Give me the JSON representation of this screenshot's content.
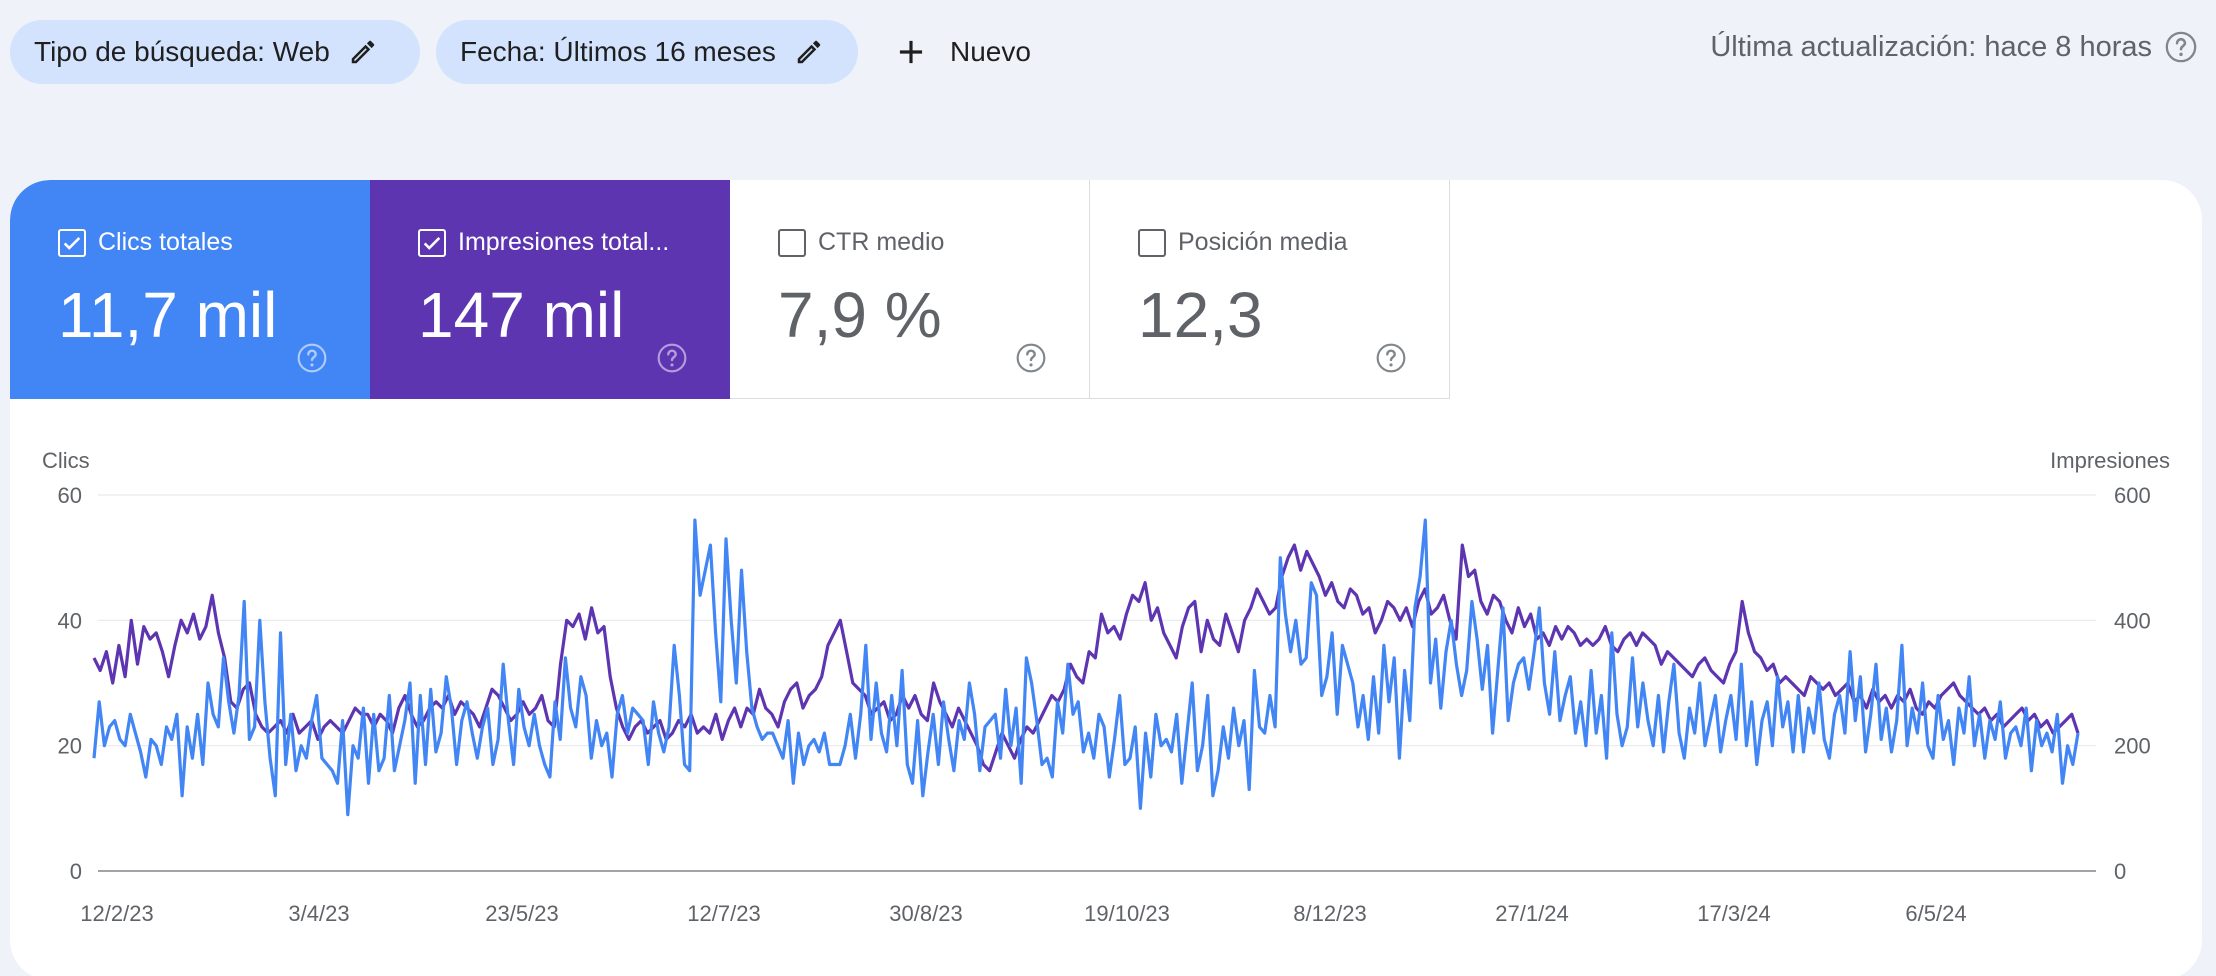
{
  "filters": {
    "search_type_label": "Tipo de búsqueda: Web",
    "date_label": "Fecha: Últimos 16 meses",
    "new_label": "Nuevo"
  },
  "last_updated": "Última actualización: hace 8 horas",
  "metrics": {
    "clicks": {
      "label": "Clics totales",
      "value": "11,7 mil",
      "checked": true,
      "color": "#4285f4"
    },
    "impressions": {
      "label": "Impresiones total...",
      "value": "147 mil",
      "checked": true,
      "color": "#5e35b1"
    },
    "ctr": {
      "label": "CTR medio",
      "value": "7,9 %",
      "checked": false
    },
    "position": {
      "label": "Posición media",
      "value": "12,3",
      "checked": false
    }
  },
  "chart_data": {
    "type": "line",
    "ylabel_left": "Clics",
    "ylabel_right": "Impresiones",
    "ylim_left": [
      0,
      60
    ],
    "ylim_right": [
      0,
      600
    ],
    "yticks_left": [
      "0",
      "20",
      "40",
      "60"
    ],
    "yticks_right": [
      "0",
      "200",
      "400",
      "600"
    ],
    "xticks": [
      "12/2/23",
      "3/4/23",
      "23/5/23",
      "12/7/23",
      "30/8/23",
      "19/10/23",
      "8/12/23",
      "27/1/24",
      "17/3/24",
      "6/5/24"
    ],
    "x_start": "12/2/23",
    "x_end": "26/6/24",
    "grid": true,
    "series": [
      {
        "name": "Impresiones",
        "axis": "right",
        "color": "#5e35b1",
        "values": [
          340,
          320,
          350,
          300,
          360,
          310,
          400,
          330,
          390,
          370,
          380,
          350,
          310,
          360,
          400,
          380,
          410,
          370,
          390,
          440,
          380,
          340,
          270,
          260,
          290,
          300,
          250,
          230,
          220,
          230,
          240,
          220,
          250,
          220,
          230,
          240,
          210,
          230,
          240,
          230,
          220,
          240,
          260,
          250,
          250,
          230,
          250,
          240,
          220,
          260,
          280,
          250,
          230,
          240,
          260,
          270,
          260,
          280,
          250,
          270,
          260,
          250,
          230,
          260,
          290,
          280,
          260,
          240,
          250,
          270,
          250,
          260,
          280,
          240,
          230,
          330,
          400,
          390,
          410,
          370,
          420,
          380,
          390,
          310,
          260,
          230,
          210,
          230,
          240,
          220,
          230,
          240,
          210,
          220,
          240,
          230,
          250,
          220,
          230,
          220,
          250,
          210,
          240,
          260,
          230,
          260,
          250,
          290,
          260,
          250,
          230,
          270,
          290,
          300,
          260,
          280,
          290,
          310,
          360,
          380,
          400,
          350,
          300,
          290,
          280,
          250,
          260,
          270,
          240,
          250,
          280,
          260,
          280,
          250,
          240,
          300,
          270,
          250,
          230,
          260,
          240,
          220,
          200,
          170,
          160,
          190,
          220,
          200,
          180,
          210,
          230,
          220,
          240,
          260,
          280,
          270,
          290,
          330,
          310,
          300,
          350,
          340,
          410,
          380,
          390,
          370,
          410,
          440,
          430,
          460,
          400,
          420,
          380,
          360,
          340,
          390,
          420,
          430,
          350,
          400,
          370,
          360,
          410,
          380,
          350,
          400,
          420,
          450,
          430,
          410,
          420,
          470,
          500,
          520,
          480,
          510,
          490,
          470,
          440,
          460,
          430,
          420,
          450,
          440,
          410,
          420,
          380,
          400,
          430,
          420,
          400,
          420,
          390,
          430,
          450,
          410,
          420,
          440,
          400,
          370,
          520,
          470,
          480,
          430,
          410,
          440,
          430,
          400,
          380,
          420,
          390,
          410,
          370,
          380,
          360,
          390,
          370,
          390,
          380,
          360,
          370,
          360,
          370,
          390,
          360,
          350,
          370,
          380,
          360,
          380,
          370,
          360,
          330,
          350,
          340,
          330,
          320,
          310,
          330,
          340,
          320,
          310,
          300,
          330,
          350,
          430,
          380,
          350,
          340,
          320,
          330,
          300,
          310,
          300,
          290,
          280,
          310,
          300,
          290,
          300,
          280,
          290,
          300,
          270,
          280,
          260,
          290,
          270,
          280,
          260,
          280,
          270,
          290,
          260,
          250,
          270,
          260,
          280,
          290,
          300,
          280,
          270,
          260,
          250,
          260,
          240,
          250,
          230,
          240,
          250,
          260,
          240,
          250,
          230,
          240,
          220,
          230,
          240,
          250,
          220
        ]
      },
      {
        "name": "Clics",
        "axis": "left",
        "color": "#4285f4",
        "values": [
          18,
          27,
          20,
          23,
          24,
          21,
          20,
          25,
          22,
          19,
          15,
          21,
          20,
          17,
          23,
          21,
          25,
          12,
          23,
          18,
          25,
          17,
          30,
          25,
          23,
          34,
          27,
          22,
          28,
          43,
          21,
          23,
          40,
          27,
          18,
          12,
          38,
          17,
          25,
          16,
          20,
          18,
          24,
          28,
          18,
          17,
          16,
          14,
          24,
          9,
          20,
          18,
          26,
          14,
          25,
          16,
          18,
          28,
          16,
          20,
          24,
          30,
          14,
          28,
          17,
          29,
          19,
          22,
          31,
          26,
          17,
          24,
          27,
          22,
          18,
          23,
          26,
          17,
          21,
          33,
          24,
          17,
          29,
          23,
          20,
          25,
          20,
          17,
          15,
          27,
          21,
          34,
          26,
          23,
          31,
          28,
          18,
          24,
          20,
          22,
          15,
          25,
          28,
          22,
          26,
          25,
          24,
          17,
          27,
          22,
          19,
          23,
          36,
          28,
          17,
          16,
          56,
          44,
          48,
          52,
          38,
          27,
          53,
          40,
          30,
          48,
          35,
          26,
          23,
          21,
          22,
          22,
          20,
          18,
          24,
          14,
          22,
          17,
          20,
          21,
          19,
          22,
          17,
          17,
          17,
          20,
          25,
          18,
          25,
          36,
          21,
          30,
          22,
          19,
          28,
          20,
          32,
          17,
          14,
          24,
          12,
          19,
          25,
          17,
          27,
          21,
          16,
          24,
          21,
          30,
          25,
          16,
          23,
          24,
          25,
          18,
          29,
          20,
          26,
          14,
          34,
          30,
          24,
          17,
          18,
          15,
          27,
          22,
          33,
          25,
          27,
          19,
          22,
          18,
          25,
          23,
          15,
          21,
          28,
          17,
          18,
          23,
          10,
          22,
          15,
          25,
          20,
          21,
          19,
          25,
          14,
          22,
          30,
          16,
          20,
          28,
          12,
          16,
          23,
          18,
          26,
          20,
          24,
          13,
          32,
          23,
          22,
          28,
          23,
          50,
          41,
          35,
          40,
          33,
          34,
          46,
          44,
          28,
          31,
          38,
          25,
          36,
          33,
          30,
          23,
          28,
          21,
          31,
          22,
          36,
          27,
          34,
          18,
          32,
          24,
          42,
          47,
          56,
          30,
          37,
          26,
          35,
          40,
          33,
          28,
          32,
          43,
          37,
          29,
          36,
          22,
          32,
          42,
          24,
          30,
          33,
          34,
          29,
          35,
          42,
          30,
          25,
          35,
          24,
          28,
          31,
          22,
          27,
          20,
          32,
          22,
          28,
          18,
          38,
          25,
          20,
          23,
          34,
          23,
          30,
          24,
          20,
          28,
          19,
          27,
          33,
          22,
          18,
          26,
          22,
          30,
          20,
          24,
          28,
          19,
          24,
          28,
          21,
          33,
          20,
          27,
          17,
          24,
          27,
          20,
          31,
          23,
          27,
          19,
          28,
          19,
          26,
          22,
          30,
          21,
          18,
          25,
          28,
          22,
          35,
          24,
          31,
          19,
          25,
          33,
          21,
          26,
          19,
          24,
          36,
          20,
          26,
          22,
          30,
          20,
          18,
          28,
          21,
          24,
          17,
          26,
          22,
          31,
          20,
          25,
          18,
          24,
          21,
          27,
          18,
          22,
          23,
          20,
          26,
          16,
          24,
          20,
          22,
          19,
          25,
          14,
          20,
          17,
          22
        ]
      }
    ]
  }
}
